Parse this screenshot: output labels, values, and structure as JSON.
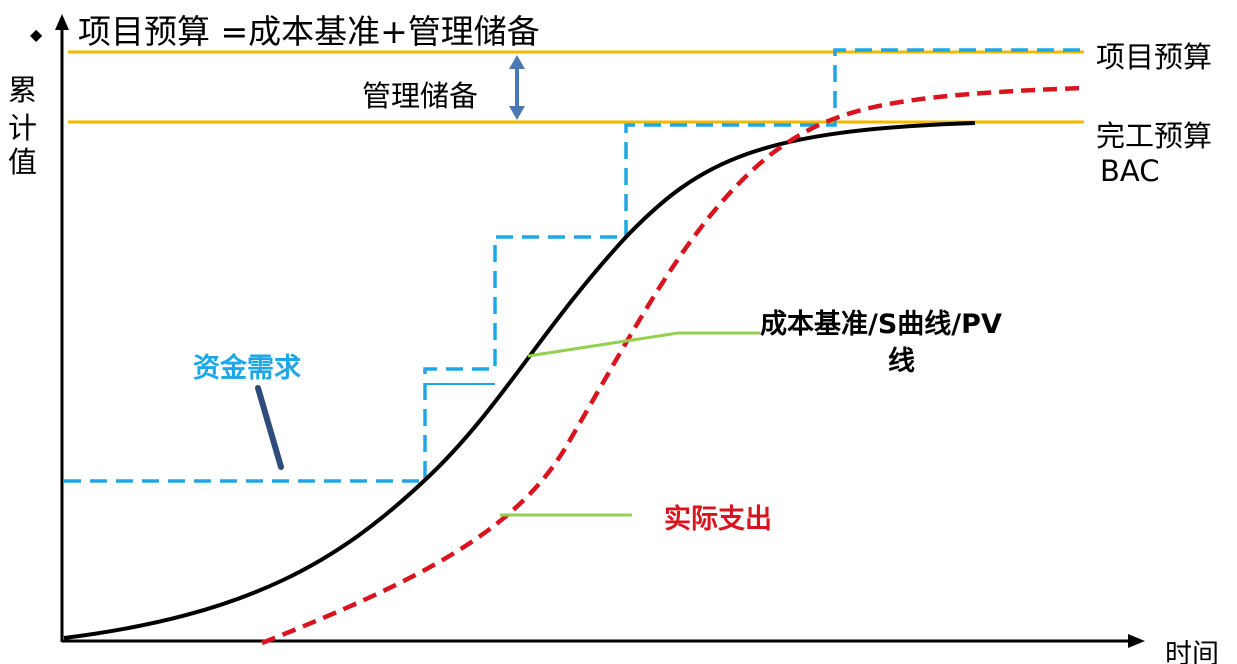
{
  "title": "项目预算 =成本基准+管理储备",
  "y_axis_label": [
    "累",
    "计",
    "值"
  ],
  "x_axis_label": "时间",
  "reserve_label": "管理储备",
  "project_budget_label": "项目预算",
  "bac_label_line1": "完工预算",
  "bac_label_line2": "BAC",
  "baseline_label_line1": "成本基准/S曲线/PV",
  "baseline_label_line2": "线",
  "funding_label": "资金需求",
  "actual_label": "实际支出",
  "colors": {
    "budget_line": "#F5B800",
    "funding": "#1EA7E6",
    "actual": "#D9141E",
    "baseline": "#000000",
    "reserve_arrow": "#4A78B5",
    "pointer": "#92D050",
    "funding_pointer": "#2E4D7B"
  }
}
